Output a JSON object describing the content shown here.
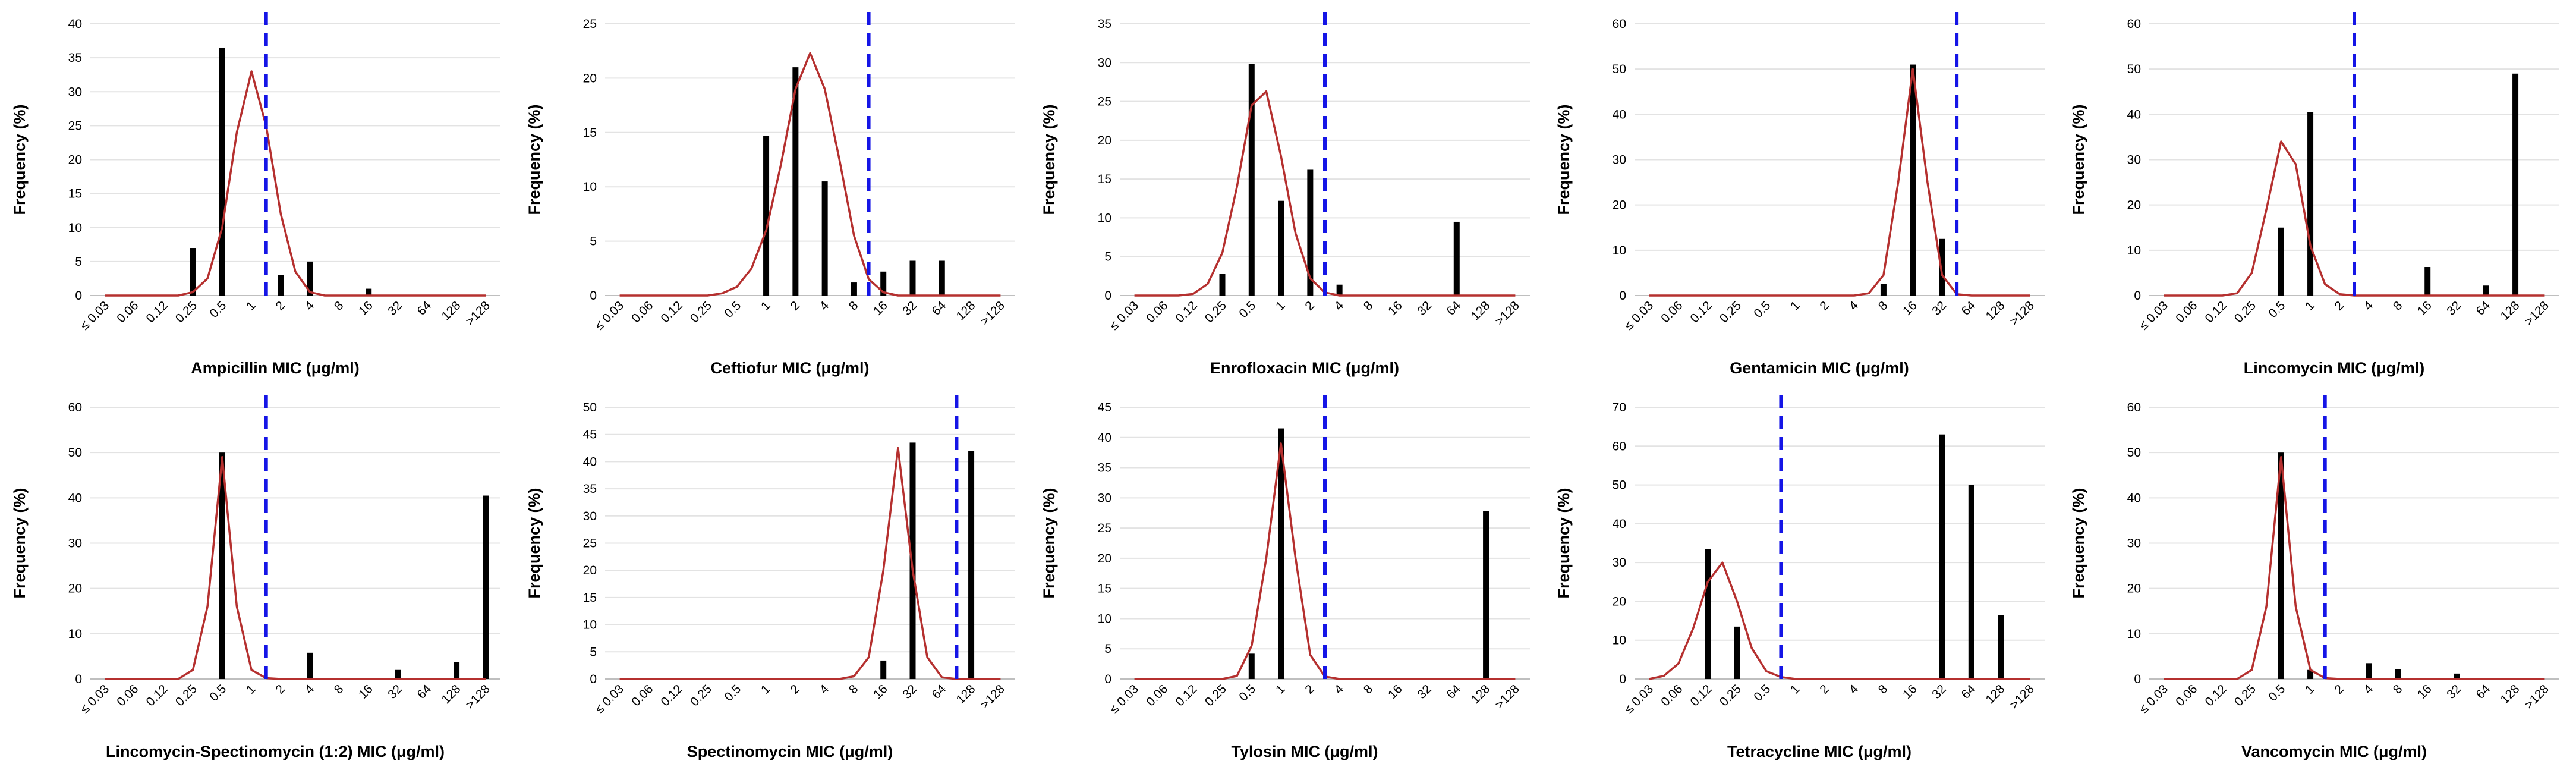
{
  "chart_data": [
    {
      "type": "bar",
      "title": "",
      "xlabel": "Ampicillin MIC (μg/ml)",
      "ylabel": "Frequency (%)",
      "ylim": [
        0,
        40
      ],
      "ytick_step": 5,
      "categories": [
        "≤ 0.03",
        "0.06",
        "0.12",
        "0.25",
        "0.5",
        "1",
        "2",
        "4",
        "8",
        "16",
        "32",
        "64",
        "128",
        ">128"
      ],
      "values": [
        0,
        0,
        0,
        7,
        36.5,
        0,
        3,
        5,
        0,
        1,
        0,
        0,
        0,
        0
      ],
      "curve": [
        0,
        0,
        0,
        0,
        0,
        0,
        0.5,
        2.5,
        10,
        24,
        33,
        25,
        12,
        3.5,
        0.5,
        0,
        0,
        0,
        0,
        0,
        0,
        0,
        0,
        0,
        0,
        0,
        0
      ],
      "breakpoint": 1
    },
    {
      "type": "bar",
      "title": "",
      "xlabel": "Ceftiofur MIC (μg/ml)",
      "ylabel": "Frequency (%)",
      "ylim": [
        0,
        25
      ],
      "ytick_step": 5,
      "categories": [
        "≤ 0.03",
        "0.06",
        "0.12",
        "0.25",
        "0.5",
        "1",
        "2",
        "4",
        "8",
        "16",
        "32",
        "64",
        "128",
        ">128"
      ],
      "values": [
        0,
        0,
        0,
        0,
        0,
        14.7,
        21,
        10.5,
        1.2,
        2.2,
        3.2,
        3.2,
        0,
        0
      ],
      "curve": [
        0,
        0,
        0,
        0,
        0,
        0,
        0,
        0.2,
        0.8,
        2.5,
        6,
        12,
        19,
        22.3,
        19,
        12.5,
        5.5,
        1.5,
        0.3,
        0,
        0,
        0,
        0,
        0,
        0,
        0,
        0
      ],
      "breakpoint": 8
    },
    {
      "type": "bar",
      "title": "",
      "xlabel": "Enrofloxacin MIC (μg/ml)",
      "ylabel": "Frequency (%)",
      "ylim": [
        0,
        35
      ],
      "ytick_step": 5,
      "categories": [
        "≤ 0.03",
        "0.06",
        "0.12",
        "0.25",
        "0.5",
        "1",
        "2",
        "4",
        "8",
        "16",
        "32",
        "64",
        "128",
        ">128"
      ],
      "values": [
        0,
        0,
        0,
        2.8,
        29.8,
        12.2,
        16.2,
        1.4,
        0,
        0,
        0,
        9.5,
        0,
        0
      ],
      "curve": [
        0,
        0,
        0,
        0,
        0.2,
        1.5,
        5.5,
        14,
        24.5,
        26.3,
        18,
        8,
        2.2,
        0.4,
        0,
        0,
        0,
        0,
        0,
        0,
        0,
        0,
        0,
        0,
        0,
        0,
        0
      ],
      "breakpoint": 2
    },
    {
      "type": "bar",
      "title": "",
      "xlabel": "Gentamicin MIC (μg/ml)",
      "ylabel": "Frequency (%)",
      "ylim": [
        0,
        60
      ],
      "ytick_step": 10,
      "categories": [
        "≤ 0.03",
        "0.06",
        "0.12",
        "0.25",
        "0.5",
        "1",
        "2",
        "4",
        "8",
        "16",
        "32",
        "64",
        "128",
        ">128"
      ],
      "values": [
        0,
        0,
        0,
        0,
        0,
        0,
        0,
        0,
        2.5,
        51,
        12.5,
        0,
        0,
        0
      ],
      "curve": [
        0,
        0,
        0,
        0,
        0,
        0,
        0,
        0,
        0,
        0,
        0,
        0,
        0,
        0,
        0,
        0.5,
        4.5,
        25,
        50,
        25,
        4.5,
        0.3,
        0,
        0,
        0,
        0,
        0
      ],
      "breakpoint": 32
    },
    {
      "type": "bar",
      "title": "",
      "xlabel": "Lincomycin MIC (μg/ml)",
      "ylabel": "Frequency (%)",
      "ylim": [
        0,
        60
      ],
      "ytick_step": 10,
      "categories": [
        "≤ 0.03",
        "0.06",
        "0.12",
        "0.25",
        "0.5",
        "1",
        "2",
        "4",
        "8",
        "16",
        "32",
        "64",
        "128",
        ">128"
      ],
      "values": [
        0,
        0,
        0,
        0,
        15,
        40.5,
        0,
        0,
        0,
        6.3,
        0,
        2.2,
        49,
        0
      ],
      "curve": [
        0,
        0,
        0,
        0,
        0,
        0.5,
        5,
        19,
        34,
        29,
        11,
        2.5,
        0.3,
        0,
        0,
        0,
        0,
        0,
        0,
        0,
        0,
        0,
        0,
        0,
        0,
        0,
        0
      ],
      "breakpoint": 2
    },
    {
      "type": "bar",
      "title": "",
      "xlabel": "Lincomycin-Spectinomycin (1:2) MIC (μg/ml)",
      "ylabel": "Frequency (%)",
      "ylim": [
        0,
        60
      ],
      "ytick_step": 10,
      "categories": [
        "≤ 0.03",
        "0.06",
        "0.12",
        "0.25",
        "0.5",
        "1",
        "2",
        "4",
        "8",
        "16",
        "32",
        "64",
        "128",
        ">128"
      ],
      "values": [
        0,
        0,
        0,
        0,
        50,
        0,
        0,
        5.8,
        0,
        0,
        2,
        0,
        3.8,
        40.5
      ],
      "curve": [
        0,
        0,
        0,
        0,
        0,
        0,
        2,
        16,
        49,
        16,
        2,
        0.2,
        0,
        0,
        0,
        0,
        0,
        0,
        0,
        0,
        0,
        0,
        0,
        0,
        0,
        0,
        0
      ],
      "breakpoint": 1
    },
    {
      "type": "bar",
      "title": "",
      "xlabel": "Spectinomycin MIC (μg/ml)",
      "ylabel": "Frequency (%)",
      "ylim": [
        0,
        50
      ],
      "ytick_step": 5,
      "categories": [
        "≤ 0.03",
        "0.06",
        "0.12",
        "0.25",
        "0.5",
        "1",
        "2",
        "4",
        "8",
        "16",
        "32",
        "64",
        "128",
        ">128"
      ],
      "values": [
        0,
        0,
        0,
        0,
        0,
        0,
        0,
        0,
        0,
        3.4,
        43.5,
        0,
        42,
        0
      ],
      "curve": [
        0,
        0,
        0,
        0,
        0,
        0,
        0,
        0,
        0,
        0,
        0,
        0,
        0,
        0,
        0,
        0,
        0.5,
        4,
        20,
        42.5,
        20,
        4,
        0.3,
        0,
        0,
        0,
        0
      ],
      "breakpoint": 64
    },
    {
      "type": "bar",
      "title": "",
      "xlabel": "Tylosin MIC (μg/ml)",
      "ylabel": "Frequency (%)",
      "ylim": [
        0,
        45
      ],
      "ytick_step": 5,
      "categories": [
        "≤ 0.03",
        "0.06",
        "0.12",
        "0.25",
        "0.5",
        "1",
        "2",
        "4",
        "8",
        "16",
        "32",
        "64",
        "128",
        ">128"
      ],
      "values": [
        0,
        0,
        0,
        0,
        4.2,
        41.5,
        0,
        0,
        0,
        0,
        0,
        0,
        27.8,
        0
      ],
      "curve": [
        0,
        0,
        0,
        0,
        0,
        0,
        0,
        0.5,
        5.5,
        20,
        39,
        20,
        4,
        0.4,
        0,
        0,
        0,
        0,
        0,
        0,
        0,
        0,
        0,
        0,
        0,
        0,
        0
      ],
      "breakpoint": 2
    },
    {
      "type": "bar",
      "title": "",
      "xlabel": "Tetracycline MIC (μg/ml)",
      "ylabel": "Frequency (%)",
      "ylim": [
        0,
        70
      ],
      "ytick_step": 10,
      "categories": [
        "≤ 0.03",
        "0.06",
        "0.12",
        "0.25",
        "0.5",
        "1",
        "2",
        "4",
        "8",
        "16",
        "32",
        "64",
        "128",
        ">128"
      ],
      "values": [
        0,
        0,
        33.5,
        13.5,
        0,
        0,
        0,
        0,
        0,
        0,
        63,
        50,
        16.5,
        0
      ],
      "curve": [
        0,
        0.8,
        4,
        13,
        25,
        30,
        20,
        8,
        2,
        0.5,
        0,
        0,
        0,
        0,
        0,
        0,
        0,
        0,
        0,
        0,
        0,
        0,
        0,
        0,
        0,
        0,
        0
      ],
      "breakpoint": 0.5
    },
    {
      "type": "bar",
      "title": "",
      "xlabel": "Vancomycin MIC (μg/ml)",
      "ylabel": "Frequency (%)",
      "ylim": [
        0,
        60
      ],
      "ytick_step": 10,
      "categories": [
        "≤ 0.03",
        "0.06",
        "0.12",
        "0.25",
        "0.5",
        "1",
        "2",
        "4",
        "8",
        "16",
        "32",
        "64",
        "128",
        ">128"
      ],
      "values": [
        0,
        0,
        0,
        0,
        50,
        2,
        0,
        3.5,
        2.2,
        0,
        1.2,
        0,
        0,
        0
      ],
      "curve": [
        0,
        0,
        0,
        0,
        0,
        0,
        2,
        16,
        49,
        16,
        2,
        0.2,
        0,
        0,
        0,
        0,
        0,
        0,
        0,
        0,
        0,
        0,
        0,
        0,
        0,
        0,
        0
      ],
      "breakpoint": 1
    }
  ]
}
